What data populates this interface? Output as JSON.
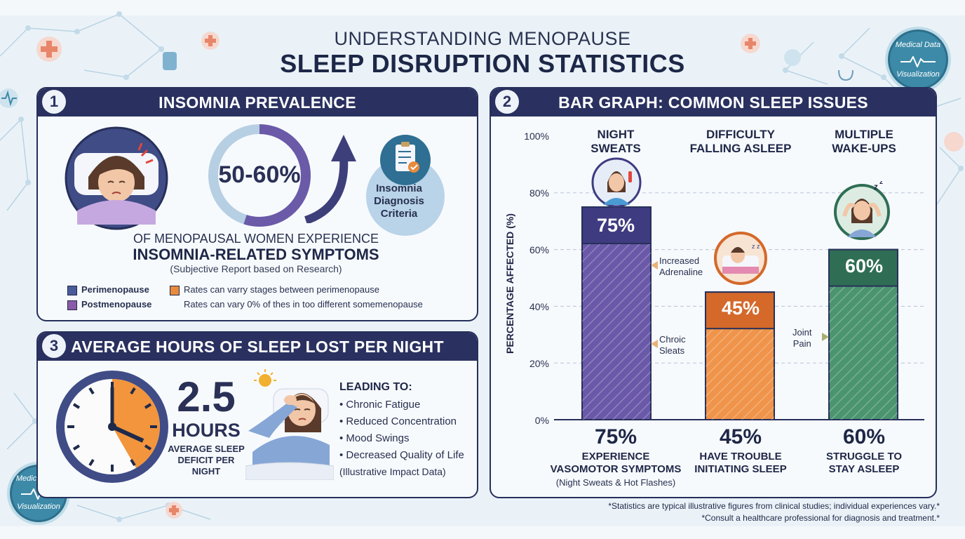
{
  "header": {
    "subtitle": "UNDERSTANDING MENOPAUSE",
    "title": "SLEEP DISRUPTION STATISTICS"
  },
  "badge": {
    "line1": "Medical Data",
    "line2": "Visualization"
  },
  "panel1": {
    "number": "1",
    "title": "INSOMNIA PREVALENCE",
    "percent": "50-60%",
    "ring_fraction": 0.55,
    "criteria_label": "Insomnia Diagnosis Criteria",
    "line1": "OF MENOPAUSAL WOMEN EXPERIENCE",
    "line2": "INSOMNIA-RELATED SYMPTOMS",
    "line3": "(Subjective Report based on Research)",
    "legend": [
      {
        "label": "Perimenopause",
        "color": "#4a5b9a"
      },
      {
        "label": "Postmenopause",
        "color": "#8a5aa8"
      },
      {
        "label": "Rates can varry stages between perimenopause",
        "color": "#e88a3c"
      },
      {
        "label": "Rates can vary 0% of thes in too different somemenopause",
        "color": ""
      }
    ]
  },
  "panel3": {
    "number": "3",
    "title": "AVERAGE HOURS OF SLEEP LOST PER NIGHT",
    "value": "2.5",
    "unit": "HOURS",
    "sub": "AVERAGE SLEEP DEFICIT PER NIGHT",
    "clock_fraction": 0.2083,
    "leading_heading": "LEADING TO:",
    "leading_items": [
      "• Chronic Fatigue",
      "• Reduced Concentration",
      "• Mood Swings",
      "• Decreased Quality of Life"
    ],
    "leading_note": "(Illustrative Impact Data)"
  },
  "panel2": {
    "number": "2",
    "title": "BAR GRAPH: COMMON SLEEP ISSUES",
    "ylabel": "PERCENTAGE AFFECTED (%)",
    "ticks": [
      "100%",
      "80%",
      "60%",
      "40%",
      "20%",
      "0%"
    ],
    "bars": [
      {
        "name1": "NIGHT",
        "name2": "SWEATS",
        "label": "75%",
        "color": "#6a58a8",
        "top": "#3f3b80",
        "bottom_value": "75%",
        "bottom_text1": "EXPERIENCE",
        "bottom_text2": "VASOMOTOR SYMPTOMS",
        "bottom_note": "(Night Sweats & Hot Flashes)"
      },
      {
        "name1": "DIFFICULTY",
        "name2": "FALLING ASLEEP",
        "label": "45%",
        "color": "#ef944a",
        "top": "#d4692a",
        "bottom_value": "45%",
        "bottom_text1": "HAVE TROUBLE",
        "bottom_text2": "INITIATING SLEEP",
        "bottom_note": ""
      },
      {
        "name1": "MULTIPLE",
        "name2": "WAKE-UPS",
        "label": "60%",
        "color": "#4b9470",
        "top": "#2f6e54",
        "bottom_value": "60%",
        "bottom_text1": "STRUGGLE TO",
        "bottom_text2": "STAY ASLEEP",
        "bottom_note": ""
      }
    ],
    "annotations": {
      "a1_l1": "Increased",
      "a1_l2": "Adrenaline",
      "a2_l1": "Chroic",
      "a2_l2": "Sleats",
      "a3_l1": "Joint",
      "a3_l2": "Pain"
    }
  },
  "chart_data": {
    "type": "bar",
    "categories": [
      "NIGHT SWEATS",
      "DIFFICULTY FALLING ASLEEP",
      "MULTIPLE WAKE-UPS"
    ],
    "values": [
      75,
      45,
      60
    ],
    "title": "BAR GRAPH: COMMON SLEEP ISSUES",
    "xlabel": "",
    "ylabel": "PERCENTAGE AFFECTED (%)",
    "ylim": [
      0,
      100
    ],
    "grid": true
  },
  "footer": {
    "line1": "*Statistics are typical illustrative figures from clinical studies; individual experiences vary.*",
    "line2": "*Consult a healthcare professional for diagnosis and treatment.*"
  }
}
